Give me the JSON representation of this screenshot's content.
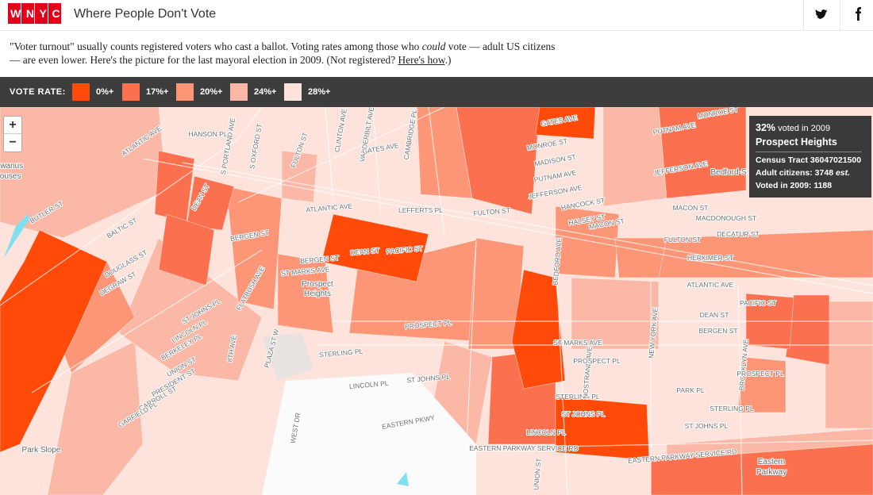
{
  "header": {
    "logo": "WNYC",
    "title": "Where People Don't Vote"
  },
  "intro": {
    "before": "\"Voter turnout\" usually counts registered voters who cast a ballot. Voting rates among those who ",
    "emphasis": "could",
    "middle": " vote — adult US citizens — are even lower. Here's the picture for the last mayoral election in 2009. (Not registered? ",
    "link": "Here's how",
    "after": ".)"
  },
  "legend": {
    "label": "VOTE RATE:",
    "items": [
      {
        "label": "0%+",
        "color": "#ff4a0a"
      },
      {
        "label": "17%+",
        "color": "#fb7150"
      },
      {
        "label": "20%+",
        "color": "#fc9677"
      },
      {
        "label": "24%+",
        "color": "#fbb8a6"
      },
      {
        "label": "28%+",
        "color": "#fde3dc"
      }
    ]
  },
  "map": {
    "zoom_in": "+",
    "zoom_out": "−",
    "labels": [
      "ATLANTIC AVE",
      "HANSON PL",
      "S PORTLAND AVE",
      "S OXFORD ST",
      "FULTON ST",
      "CLINTON AVE",
      "VANDERBILT AVE",
      "GATES AVE",
      "CAMBRIDGE PL",
      "ATLANTIC AVE",
      "LEFFERTS PL",
      "FULTON ST",
      "DEAN ST",
      "BERGEN ST",
      "BERGEN ST",
      "ST MARKS AVE",
      "Prospect",
      "Heights",
      "PACIFIC ST",
      "DEAN ST",
      "PROSPECT PL",
      "STERLING PL",
      "LINCOLN PL",
      "ST JOHNS PL",
      "EASTERN PKWY",
      "PLAZA ST W",
      "8TH AVE",
      "ST JOHNS PL",
      "LINCOLN PL",
      "BERKELEY PL",
      "UNION ST",
      "PRESIDENT ST",
      "CARROLL ST",
      "GARFIELD PL",
      "Park Slope",
      "FLATBUSH AVE",
      "DOUGLASS ST",
      "DEGRAW ST",
      "BALTIC ST",
      "BUTLER ST",
      "MONROE ST",
      "MADISON ST",
      "PUTNAM AVE",
      "JEFFERSON AVE",
      "HANCOCK ST",
      "HALSEY ST",
      "MACON ST",
      "FULTON ST",
      "HERKIMER ST",
      "ATLANTIC AVE",
      "PACIFIC ST",
      "DEAN ST",
      "BERGEN ST",
      "PARK PL",
      "STERLING PL",
      "ST JOHNS PL",
      "Eastern",
      "Parkway",
      "EASTERN PARKWAY SERVICE RD",
      "NEW YORK AVE",
      "BROOKLYN AVE",
      "PROSPECT PL",
      "MACON ST",
      "MACDONOUGH ST",
      "DECATUR ST",
      "Bedford-S",
      "PUTNAM AVE",
      "JEFFERSON AVE",
      "MONROE ST",
      "UNION ST",
      "STERLING PL",
      "ST JOHNS PL",
      "LINCOLN PL",
      "EASTERN PARKWAY SERVICE RD",
      "NOSTRAND AVE",
      "ST MARKS AVE",
      "PROSPECT PL",
      "BEDFORD AVE",
      "GATES AVE",
      "WEST DR",
      "owanus",
      "louses"
    ]
  },
  "tooltip": {
    "rate": "32%",
    "rate_text": "voted in 2009",
    "name": "Prospect Heights",
    "tract": "Census Tract 36047021500",
    "citizens": "Adult citizens: 3748",
    "citizens_note": "est.",
    "voted": "Voted in 2009: 1188"
  }
}
